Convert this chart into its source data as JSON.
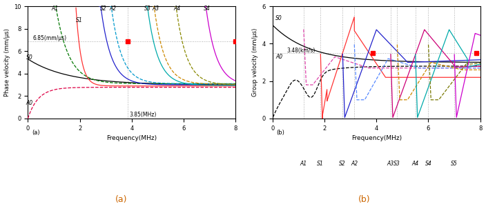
{
  "xlabel": "Frequency(MHz)",
  "ylabel_a": "Phase velocity (mm/μs)",
  "ylabel_b": "Group velocity (mm/μs)",
  "xlim": [
    0,
    8
  ],
  "ylim_a": [
    0,
    10
  ],
  "ylim_b": [
    0,
    6
  ],
  "ref_y_a": 6.85,
  "ref_x_a": 3.85,
  "ref_x_a2": 8.0,
  "ref_label_a_y": "6.85(mm/μs)",
  "ref_label_a_x": "3.85(MHz)",
  "ref_y_b": 3.48,
  "ref_label_b_y": "3.48(km/s)",
  "marker_a1": [
    3.85,
    6.85
  ],
  "marker_a2": [
    8.0,
    6.85
  ],
  "marker_b1": [
    3.85,
    3.48
  ],
  "marker_b2": [
    7.85,
    3.48
  ],
  "background": "#ffffff"
}
